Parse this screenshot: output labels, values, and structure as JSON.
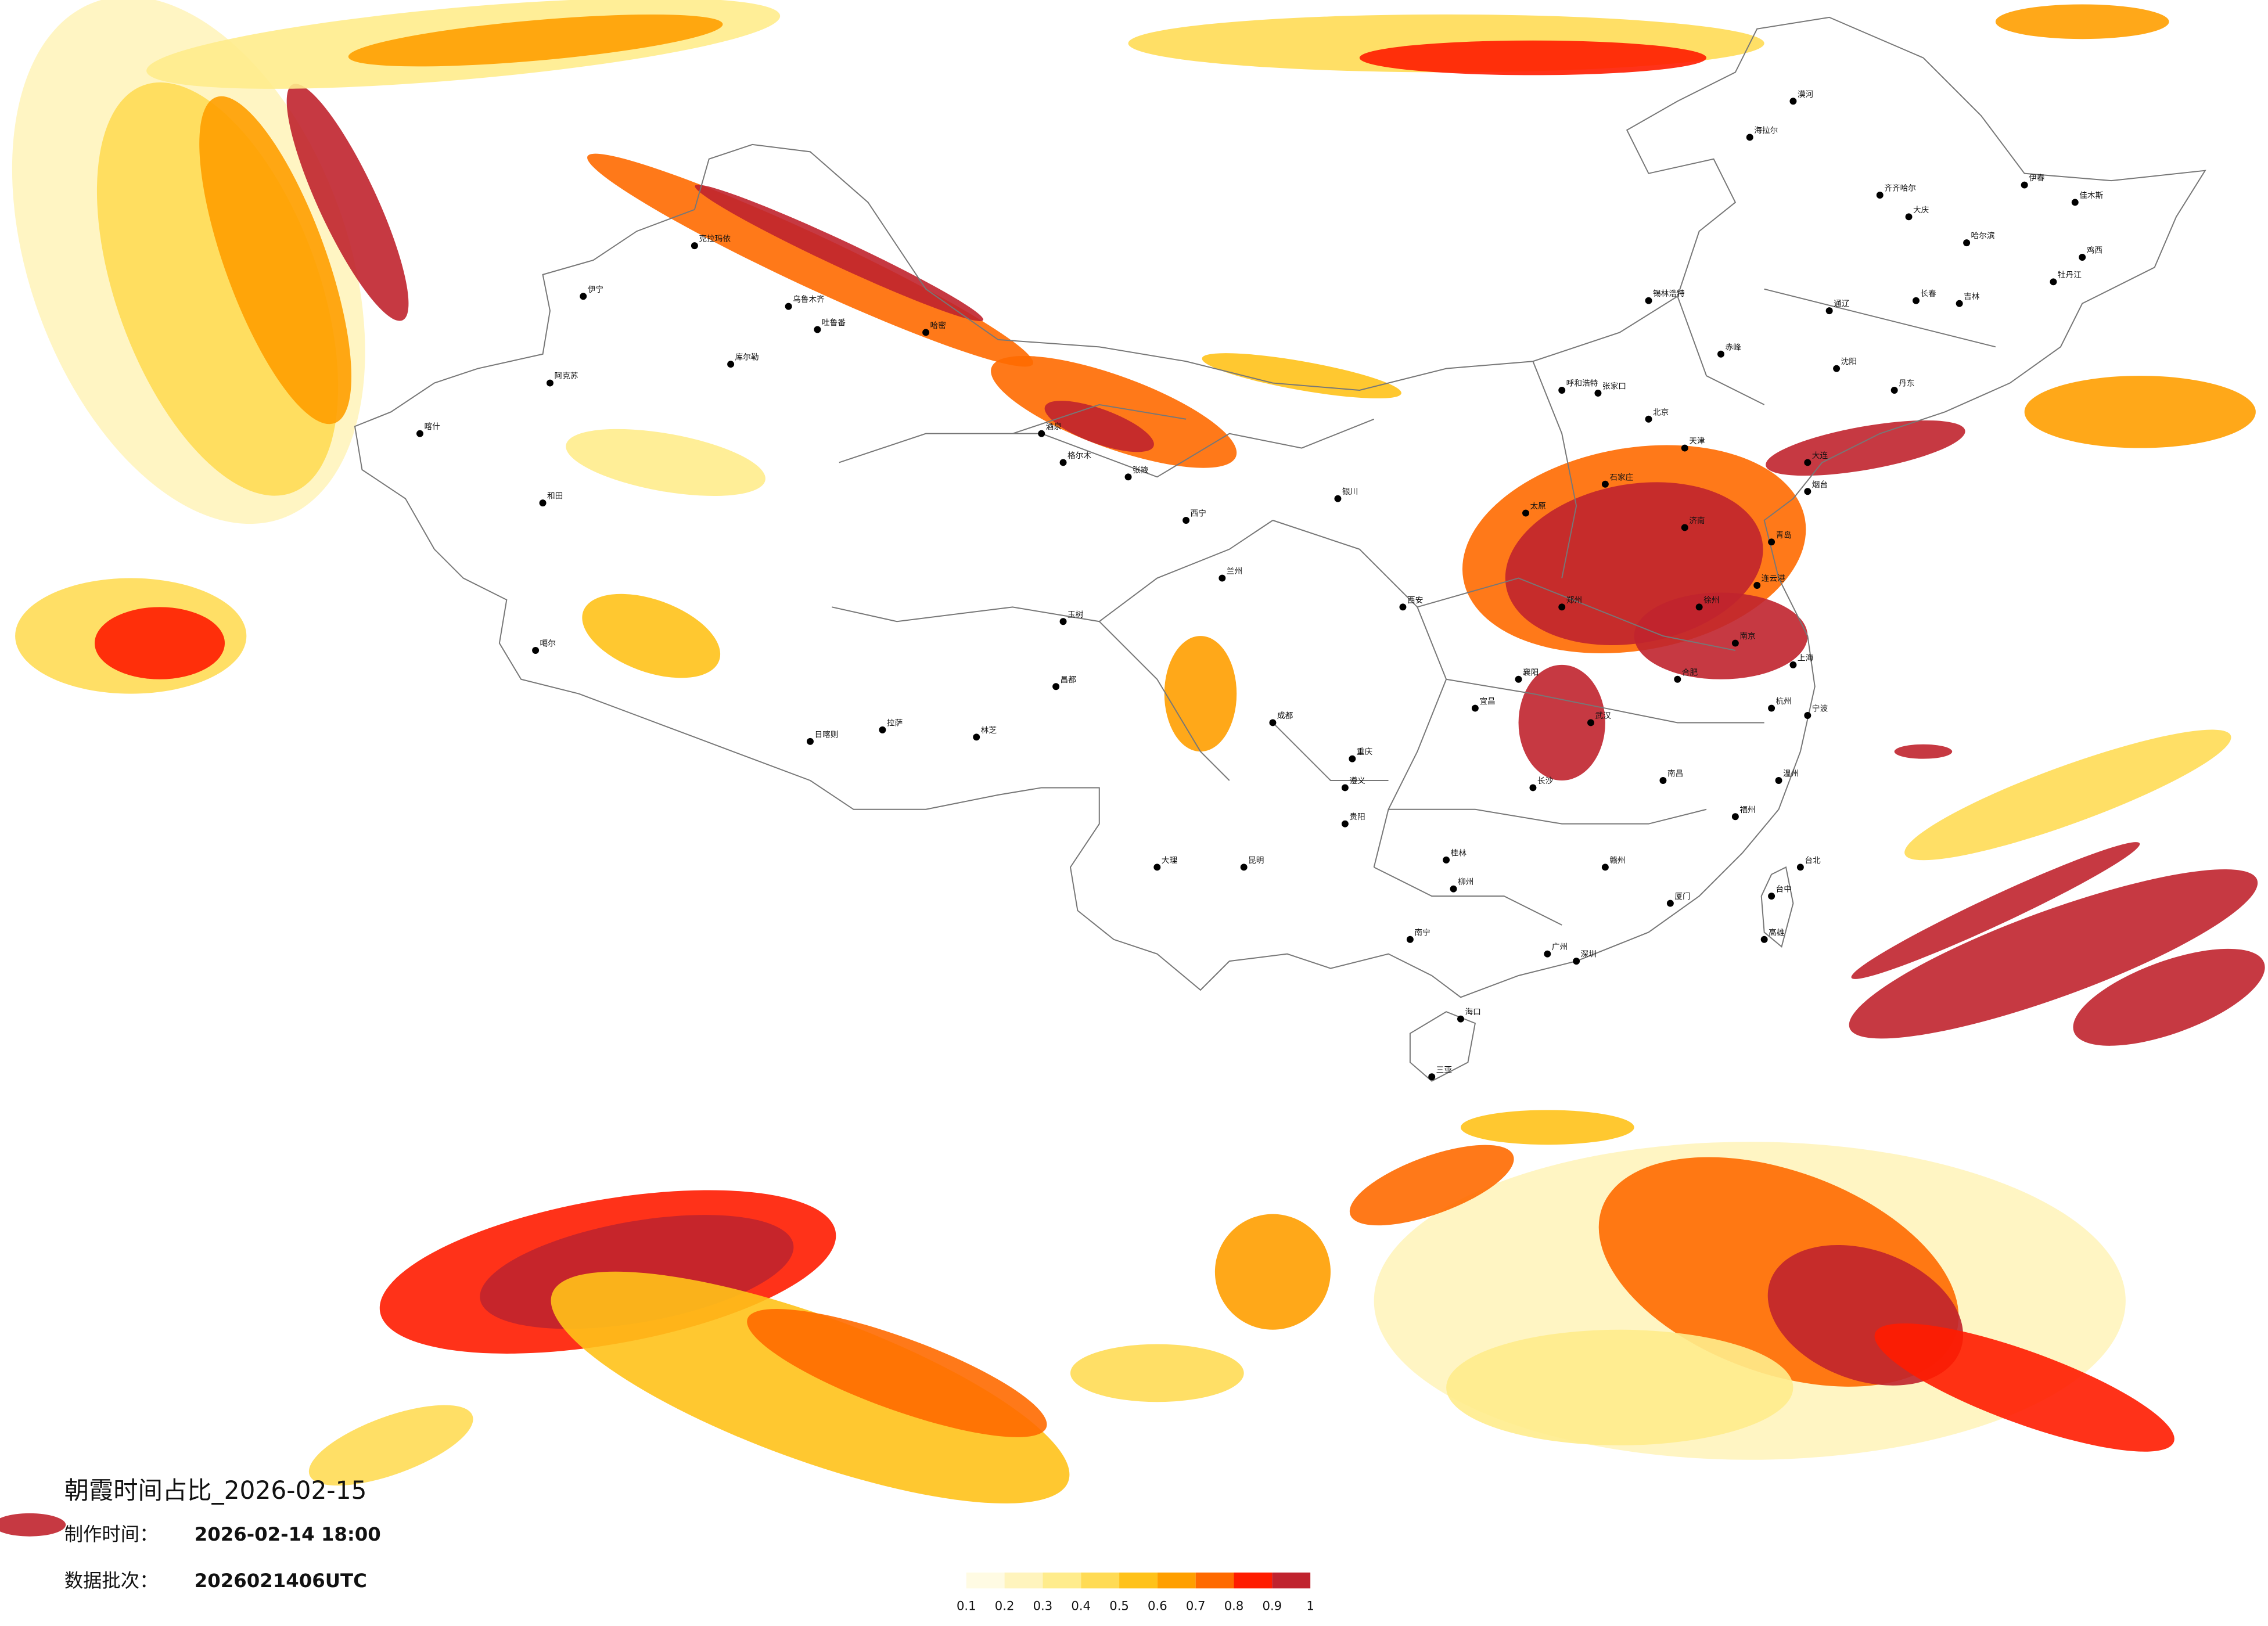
{
  "map": {
    "title": "朝霞时间占比_2026-02-15",
    "made_label": "制作时间：",
    "made_time": "2026-02-14 18:00",
    "batch_label": "数据批次：",
    "batch": "2026021406UTC",
    "cities": [
      "漠河",
      "海拉尔",
      "齐齐哈尔",
      "大庆",
      "哈尔滨",
      "伊春",
      "佳木斯",
      "鸡西",
      "牡丹江",
      "长春",
      "吉林",
      "通辽",
      "锡林浩特",
      "赤峰",
      "沈阳",
      "大连",
      "丹东",
      "呼和浩特",
      "张家口",
      "北京",
      "天津",
      "石家庄",
      "太原",
      "济南",
      "青岛",
      "烟台",
      "郑州",
      "西安",
      "银川",
      "兰州",
      "西宁",
      "张掖",
      "酒泉",
      "哈密",
      "吐鲁番",
      "乌鲁木齐",
      "克拉玛依",
      "伊宁",
      "阿克苏",
      "库尔勒",
      "喀什",
      "和田",
      "格尔木",
      "噶尔",
      "日喀则",
      "拉萨",
      "林芝",
      "昌都",
      "玉树",
      "成都",
      "重庆",
      "贵阳",
      "昆明",
      "大理",
      "南宁",
      "海口",
      "三亚",
      "广州",
      "深圳",
      "厦门",
      "福州",
      "台北",
      "台中",
      "高雄",
      "南昌",
      "长沙",
      "武汉",
      "合肥",
      "南京",
      "上海",
      "杭州",
      "宁波",
      "温州",
      "徐州",
      "连云港",
      "襄阳",
      "宜昌",
      "遵义",
      "柳州",
      "桂林",
      "赣州"
    ],
    "legend": {
      "colors": [
        "#fffbe3",
        "#fff4bd",
        "#ffec8c",
        "#ffdb55",
        "#ffc21a",
        "#ff9f00",
        "#ff6a00",
        "#ff1c00",
        "#c0232e"
      ],
      "ticks": [
        0.1,
        0.2,
        0.3,
        0.4,
        0.5,
        0.6,
        0.7,
        0.8,
        0.9,
        1
      ]
    }
  }
}
